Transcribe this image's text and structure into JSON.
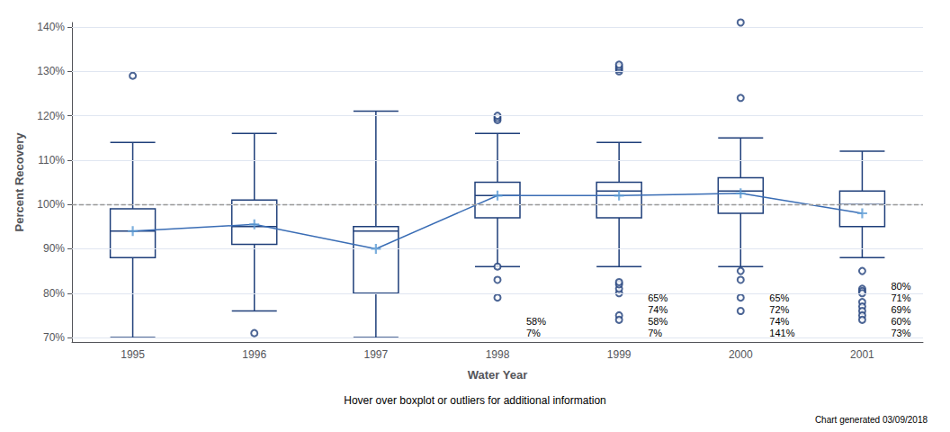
{
  "chart_data": {
    "type": "boxplot",
    "xlabel": "Water Year",
    "ylabel": "Percent Recovery",
    "subtitle": "Hover over boxplot or outliers for additional information",
    "footer": "Chart generated 03/09/2018",
    "categories": [
      "1995",
      "1996",
      "1997",
      "1998",
      "1999",
      "2000",
      "2001"
    ],
    "series": [
      {
        "type": "boxplot",
        "color": "#1f3f7a",
        "boxes": [
          {
            "whislo": 70,
            "q1": 88,
            "median": 94,
            "q3": 99,
            "whishi": 114
          },
          {
            "whislo": 76,
            "q1": 91,
            "median": 95,
            "q3": 101,
            "whishi": 116
          },
          {
            "whislo": 70,
            "q1": 80,
            "median": 94,
            "q3": 95,
            "whishi": 121
          },
          {
            "whislo": 86,
            "q1": 97,
            "median": 102,
            "q3": 105,
            "whishi": 116
          },
          {
            "whislo": 86,
            "q1": 97,
            "median": 103,
            "q3": 105,
            "whishi": 114
          },
          {
            "whislo": 86,
            "q1": 98,
            "median": 103,
            "q3": 106,
            "whishi": 115
          },
          {
            "whislo": 88,
            "q1": 95,
            "median": 100,
            "q3": 103,
            "whishi": 112
          }
        ]
      },
      {
        "type": "scatter",
        "marker": "emptyCircle",
        "color": "#1f3f7a",
        "values": [
          [
            129
          ],
          [
            71
          ],
          [],
          [
            86,
            83,
            79,
            119,
            119.5,
            120
          ],
          [
            130,
            130.5,
            131,
            131.5,
            75,
            80,
            81,
            82,
            82.5,
            74
          ],
          [
            141,
            124,
            85,
            83,
            79,
            76
          ],
          [
            85,
            81,
            80.5,
            80,
            78,
            77,
            76,
            75,
            74
          ]
        ]
      },
      {
        "type": "scatter",
        "marker": "plus",
        "color": "#5b9bd5",
        "values": [
          94,
          95.5,
          90,
          102,
          102,
          102.5,
          98
        ]
      },
      {
        "type": "line",
        "color": "#3a6db5",
        "values": [
          94,
          95.5,
          90,
          102,
          102,
          102.5,
          98
        ]
      }
    ],
    "reference_line": {
      "value": 100,
      "color": "#999999",
      "line_style": "dashed"
    },
    "annotations": [
      {
        "text": "7%",
        "category": "1998"
      },
      {
        "text": "58%",
        "category": "1998"
      },
      {
        "text": "7%",
        "category": "1999"
      },
      {
        "text": "58%",
        "category": "1999"
      },
      {
        "text": "74%",
        "category": "1999"
      },
      {
        "text": "65%",
        "category": "1999"
      },
      {
        "text": "141%",
        "category": "2000"
      },
      {
        "text": "74%",
        "category": "2000"
      },
      {
        "text": "72%",
        "category": "2000"
      },
      {
        "text": "65%",
        "category": "2000"
      },
      {
        "text": "73%",
        "category": "2001"
      },
      {
        "text": "60%",
        "category": "2001"
      },
      {
        "text": "69%",
        "category": "2001"
      },
      {
        "text": "71%",
        "category": "2001"
      },
      {
        "text": "80%",
        "category": "2001"
      }
    ],
    "ylim": [
      69,
      141
    ],
    "yticks": [
      {
        "value": 70,
        "label": "70%"
      },
      {
        "value": 80,
        "label": "80%"
      },
      {
        "value": 90,
        "label": "90%"
      },
      {
        "value": 100,
        "label": "100%"
      },
      {
        "value": 110,
        "label": "110%"
      },
      {
        "value": 120,
        "label": "120%"
      },
      {
        "value": 130,
        "label": "130%"
      },
      {
        "value": 140,
        "label": "140%"
      }
    ],
    "grid": true
  }
}
